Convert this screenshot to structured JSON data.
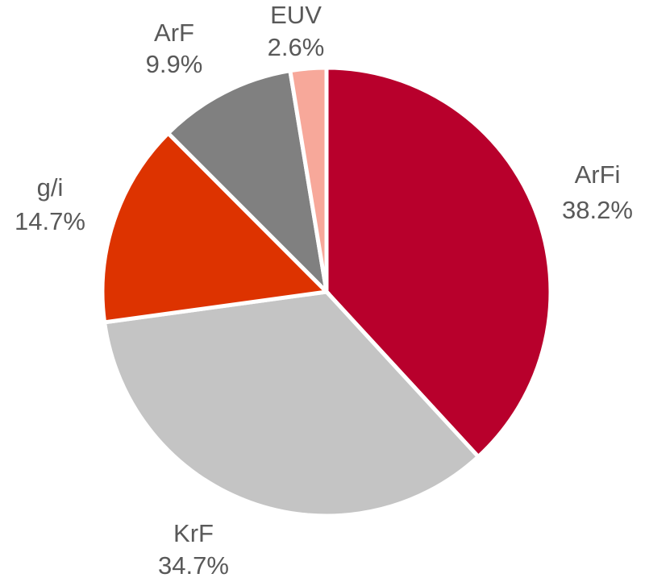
{
  "chart_data": {
    "type": "pie",
    "title": "",
    "start_angle_deg": 0,
    "direction": "clockwise",
    "slices": [
      {
        "label": "ArFi",
        "value": 38.2,
        "value_label": "38.2%",
        "color": "#B8002C"
      },
      {
        "label": "KrF",
        "value": 34.7,
        "value_label": "34.7%",
        "color": "#C4C4C4"
      },
      {
        "label": "g/i",
        "value": 14.7,
        "value_label": "14.7%",
        "color": "#DD3300"
      },
      {
        "label": "ArF",
        "value": 9.9,
        "value_label": "9.9%",
        "color": "#808080"
      },
      {
        "label": "EUV",
        "value": 2.6,
        "value_label": "2.6%",
        "color": "#F7A89A"
      }
    ]
  }
}
